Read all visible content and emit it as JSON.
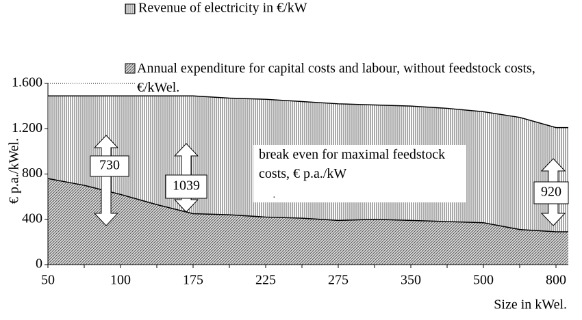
{
  "chart_data": {
    "type": "area",
    "categories": [
      "50",
      null,
      "100",
      null,
      "175",
      null,
      "225",
      null,
      "275",
      null,
      "350",
      null,
      "500",
      null,
      "800"
    ],
    "series": [
      {
        "name": "Revenue of electricity in €/kW",
        "color": "#b0b0b0",
        "values": [
          1490,
          1490,
          1490,
          1490,
          1490,
          1470,
          1460,
          1440,
          1420,
          1410,
          1400,
          1380,
          1350,
          1300,
          1210
        ]
      },
      {
        "name": "Annual expenditure for capital costs and labour, without feedstock costs,  €/kWel.",
        "color": "#808080",
        "values": [
          760,
          700,
          620,
          530,
          450,
          440,
          420,
          410,
          390,
          400,
          390,
          380,
          370,
          310,
          290
        ]
      }
    ],
    "ylim": [
      0,
      1600
    ],
    "yticks": [
      0,
      400,
      800,
      {
        "value": 1200,
        "label": "1.200"
      },
      {
        "value": 1600,
        "label": "1.600"
      }
    ],
    "ylabel": "€ p.a./kWel.",
    "xlabel": "Size in kWel.",
    "annotation": "break even for maximal feedstock costs, € p.a./kW",
    "break_even": [
      730,
      1039,
      920
    ]
  }
}
